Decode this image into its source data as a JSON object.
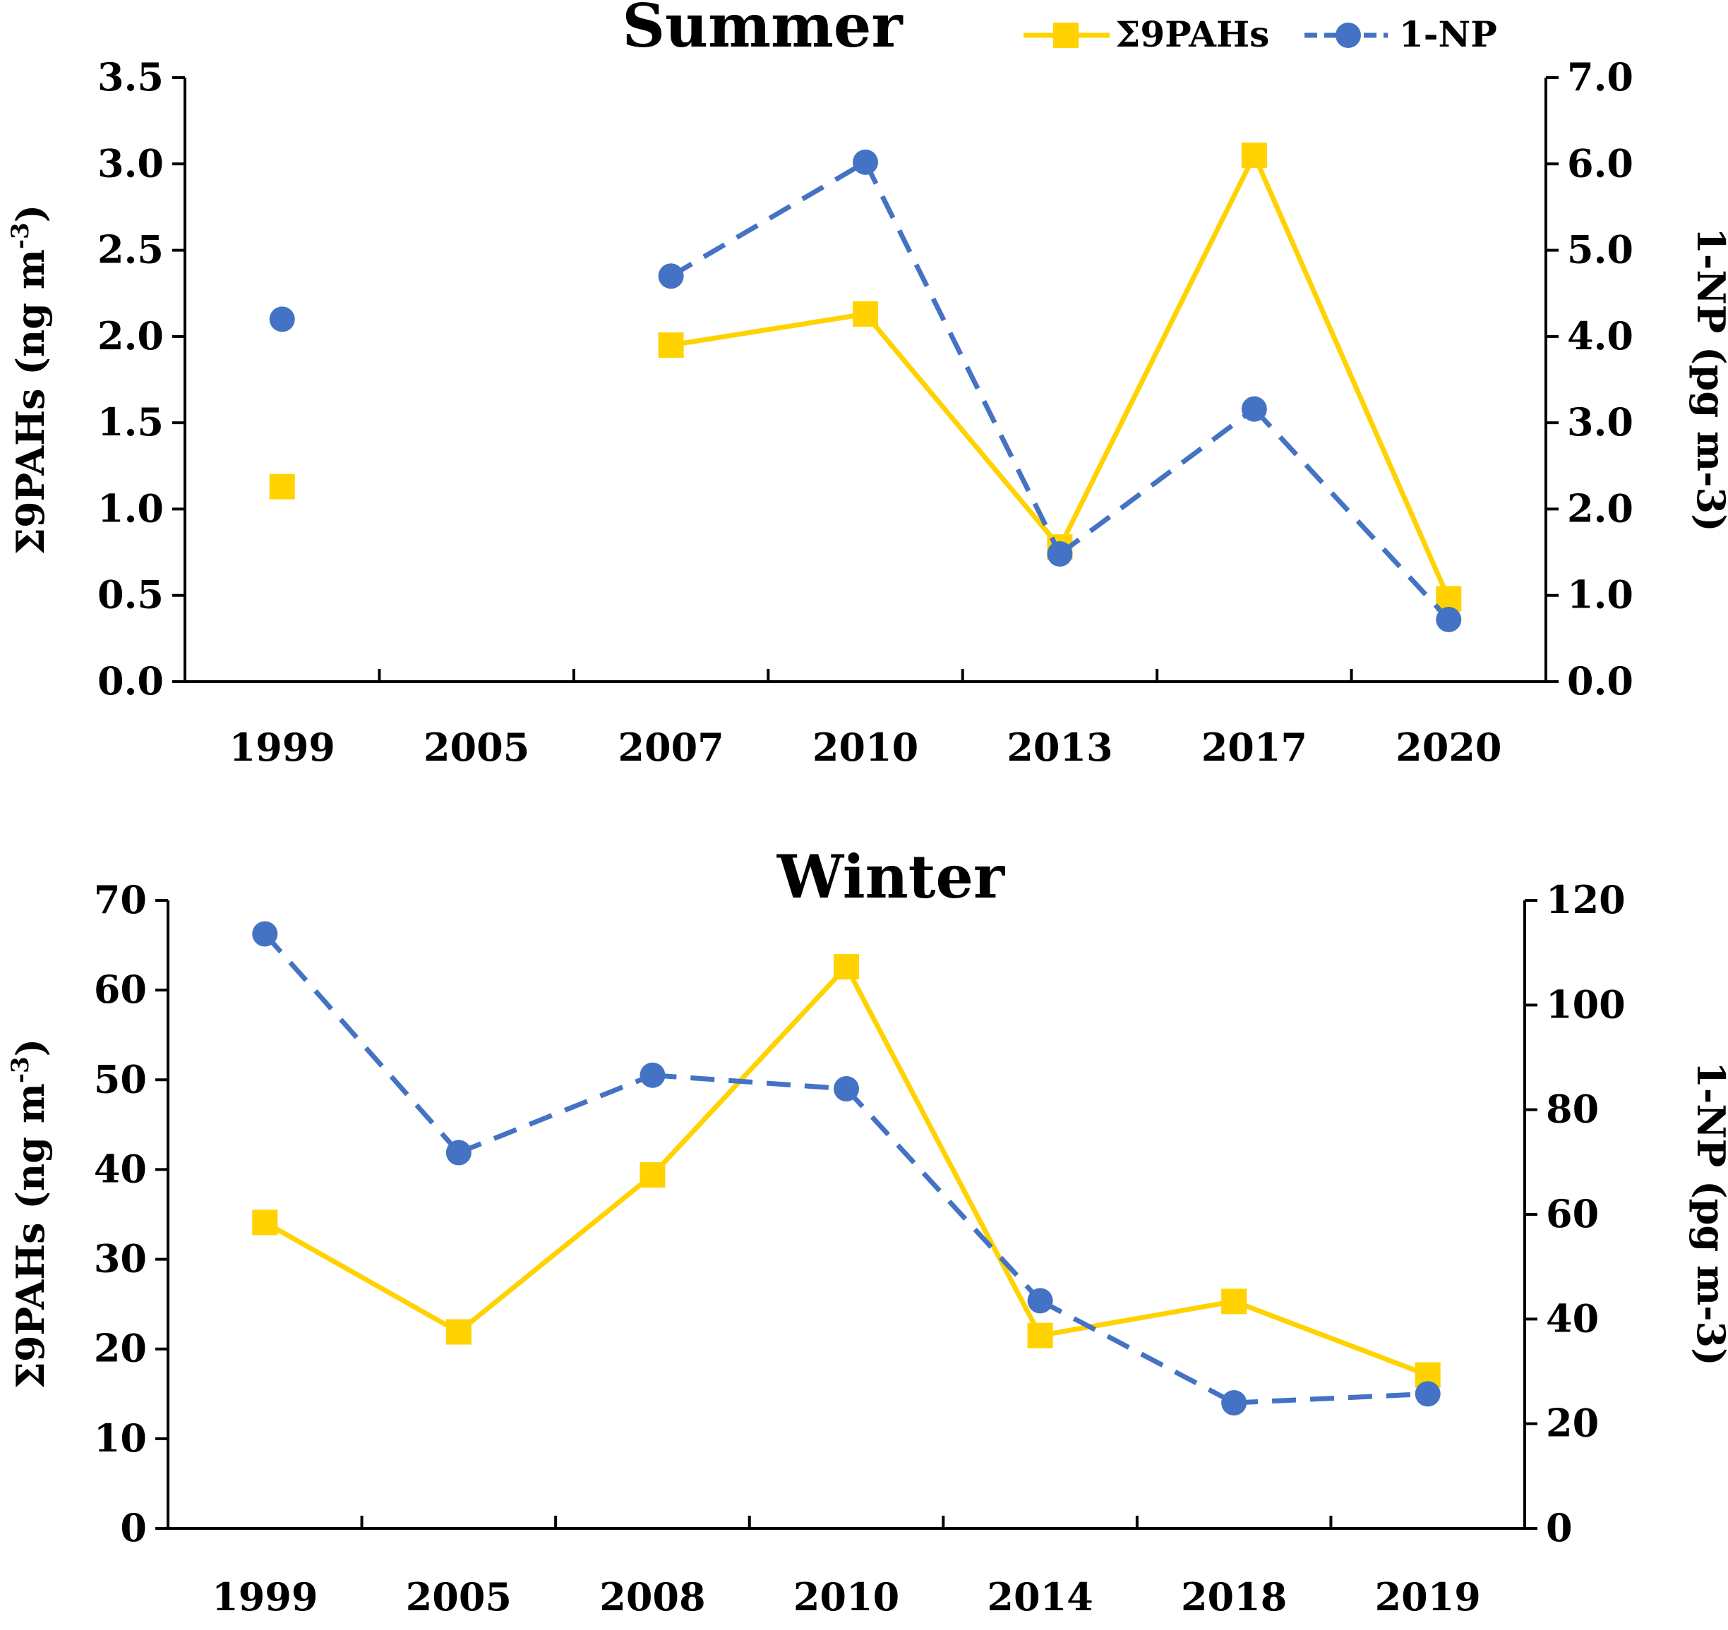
{
  "chart_data": [
    {
      "type": "line",
      "title": "Summer",
      "categories": [
        "1999",
        "2005",
        "2007",
        "2010",
        "2013",
        "2017",
        "2020"
      ],
      "series": [
        {
          "name": "Σ9PAHs",
          "axis": "left",
          "color": "#FFD200",
          "line_style": "solid",
          "marker": "square",
          "values": [
            1.13,
            null,
            1.95,
            2.13,
            0.78,
            3.05,
            0.48
          ]
        },
        {
          "name": "1-NP",
          "axis": "right",
          "color": "#4472C4",
          "line_style": "dashed",
          "marker": "circle",
          "values": [
            4.2,
            null,
            4.7,
            6.02,
            1.48,
            3.16,
            0.72
          ]
        }
      ],
      "ylabel_left": {
        "main": "Σ9PAHs (ng m",
        "sup": "-3",
        "close": ")"
      },
      "ylabel_right": "1-NP (pg m-3)",
      "ylim_left": [
        0,
        3.5
      ],
      "ylim_right": [
        0,
        7
      ],
      "yticks_left": [
        "0.0",
        "0.5",
        "1.0",
        "1.5",
        "2.0",
        "2.5",
        "3.0",
        "3.5"
      ],
      "yticks_right": [
        "0.0",
        "1.0",
        "2.0",
        "3.0",
        "4.0",
        "5.0",
        "6.0",
        "7.0"
      ],
      "legend_position": "top-right",
      "legend_items": [
        "Σ9PAHs",
        "1-NP"
      ]
    },
    {
      "type": "line",
      "title": "Winter",
      "categories": [
        "1999",
        "2005",
        "2008",
        "2010",
        "2014",
        "2018",
        "2019"
      ],
      "series": [
        {
          "name": "Σ9PAHs",
          "axis": "left",
          "color": "#FFD200",
          "line_style": "solid",
          "marker": "square",
          "values": [
            34.1,
            21.9,
            39.4,
            62.6,
            21.5,
            25.3,
            17.1
          ]
        },
        {
          "name": "1-NP",
          "axis": "right",
          "color": "#4472C4",
          "line_style": "dashed",
          "marker": "circle",
          "values": [
            113.6,
            71.8,
            86.6,
            84.0,
            43.5,
            24.0,
            25.7
          ]
        }
      ],
      "ylabel_left": {
        "main": "Σ9PAHs (ng m",
        "sup": "-3",
        "close": ")"
      },
      "ylabel_right": "1-NP (pg m-3)",
      "ylim_left": [
        0,
        70
      ],
      "ylim_right": [
        0,
        120
      ],
      "yticks_left": [
        "0",
        "10",
        "20",
        "30",
        "40",
        "50",
        "60",
        "70"
      ],
      "yticks_right": [
        "0",
        "20",
        "40",
        "60",
        "80",
        "100",
        "120"
      ],
      "legend_position": "none"
    }
  ]
}
